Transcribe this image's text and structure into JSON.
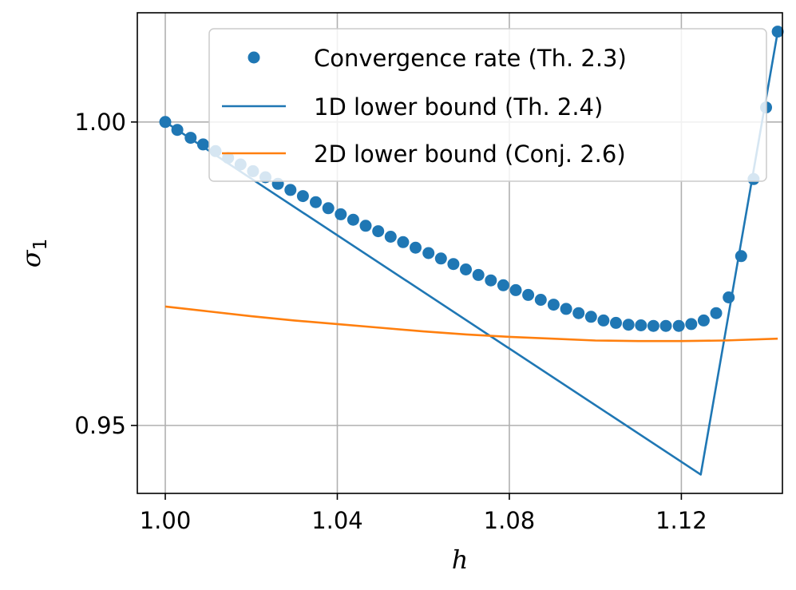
{
  "chart_data": {
    "type": "line",
    "title": "",
    "xlabel": "h",
    "ylabel": "σ",
    "ylabel_subscript": "1",
    "xlim": [
      0.9935,
      1.1435
    ],
    "ylim": [
      0.9388,
      1.018
    ],
    "xticks": [
      {
        "value": 1.0,
        "label": "1.00"
      },
      {
        "value": 1.04,
        "label": "1.04"
      },
      {
        "value": 1.08,
        "label": "1.08"
      },
      {
        "value": 1.12,
        "label": "1.12"
      }
    ],
    "yticks": [
      {
        "value": 0.95,
        "label": "0.95"
      },
      {
        "value": 1.0,
        "label": "1.00"
      }
    ],
    "grid": true,
    "legend_position": "upper-right",
    "colors": {
      "blue": "#1f77b4",
      "orange": "#ff7f0e",
      "grid": "#b0b0b0"
    },
    "series": [
      {
        "name": "Convergence rate (Th. 2.3)",
        "kind": "scatter",
        "color": "#1f77b4",
        "x": [
          1.0,
          1.0028,
          1.0059,
          1.0088,
          1.0117,
          1.0146,
          1.0175,
          1.0204,
          1.0233,
          1.0262,
          1.0291,
          1.032,
          1.035,
          1.0379,
          1.0408,
          1.0437,
          1.0466,
          1.0495,
          1.0524,
          1.0553,
          1.0582,
          1.0612,
          1.0641,
          1.067,
          1.0699,
          1.0728,
          1.0757,
          1.0786,
          1.0815,
          1.0844,
          1.0873,
          1.0903,
          1.0932,
          1.0961,
          1.099,
          1.1019,
          1.1048,
          1.1077,
          1.1106,
          1.1135,
          1.1164,
          1.1194,
          1.1223,
          1.1252,
          1.1281,
          1.131,
          1.1339,
          1.1368,
          1.1397,
          1.1424
        ],
        "y": [
          1.0,
          0.9987,
          0.9974,
          0.9963,
          0.9952,
          0.9941,
          0.993,
          0.9919,
          0.9909,
          0.9898,
          0.9888,
          0.9878,
          0.9868,
          0.9858,
          0.9848,
          0.9839,
          0.9829,
          0.982,
          0.9811,
          0.9802,
          0.9793,
          0.9784,
          0.9775,
          0.9766,
          0.9757,
          0.9748,
          0.9739,
          0.9731,
          0.9723,
          0.9715,
          0.9707,
          0.9699,
          0.9692,
          0.9685,
          0.9679,
          0.9673,
          0.9669,
          0.9666,
          0.9665,
          0.9664,
          0.9664,
          0.9664,
          0.9667,
          0.9673,
          0.9685,
          0.9711,
          0.9779,
          0.9906,
          1.0024,
          1.0149
        ]
      },
      {
        "name": "1D lower bound (Th. 2.4)",
        "kind": "line",
        "color": "#1f77b4",
        "x": [
          1.0,
          1.1245,
          1.1424
        ],
        "y": [
          1.0,
          0.9419,
          1.0149
        ]
      },
      {
        "name": "2D lower bound (Conj. 2.6)",
        "kind": "line",
        "color": "#ff7f0e",
        "x": [
          1.0,
          1.01,
          1.02,
          1.03,
          1.04,
          1.05,
          1.06,
          1.07,
          1.08,
          1.09,
          1.1,
          1.11,
          1.12,
          1.13,
          1.1424
        ],
        "y": [
          0.9696,
          0.9688,
          0.968,
          0.9673,
          0.9667,
          0.9661,
          0.9655,
          0.965,
          0.9646,
          0.9643,
          0.964,
          0.9639,
          0.9639,
          0.964,
          0.9643
        ]
      }
    ]
  }
}
